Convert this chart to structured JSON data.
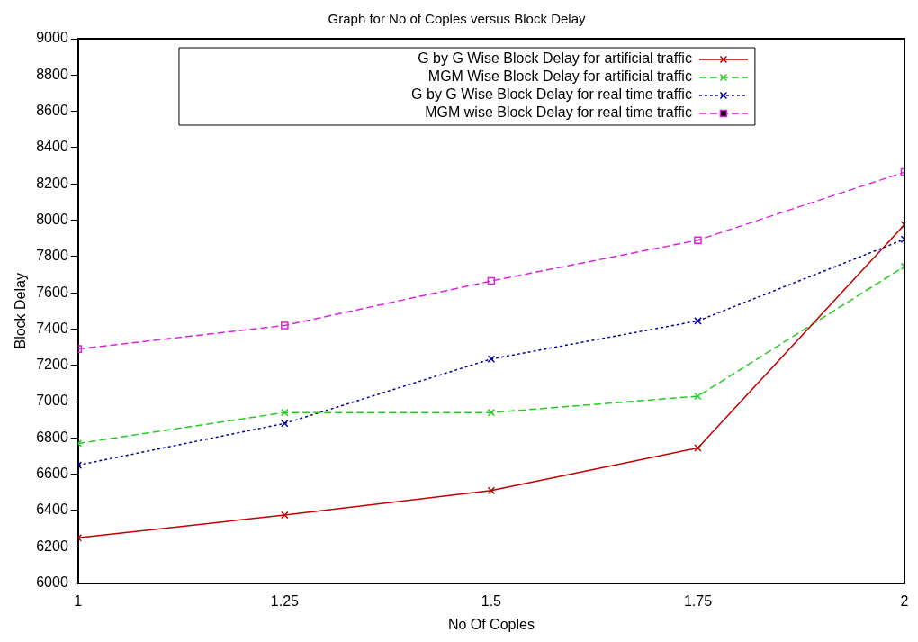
{
  "chart_data": {
    "type": "line",
    "title": "Graph for No of Coples versus Block Delay",
    "xlabel": "No Of Coples",
    "ylabel": "Block Delay",
    "x": [
      1,
      1.25,
      1.5,
      1.75,
      2
    ],
    "xlim": [
      1,
      2
    ],
    "xticks": [
      1,
      1.25,
      1.5,
      1.75,
      2
    ],
    "ylim": [
      6000,
      9000
    ],
    "yticks": [
      6000,
      6200,
      6400,
      6600,
      6800,
      7000,
      7200,
      7400,
      7600,
      7800,
      8000,
      8200,
      8400,
      8600,
      8800,
      9000
    ],
    "grid": false,
    "legend": "top right",
    "series": [
      {
        "name": "G by G Wise Block Delay for artificial traffic",
        "color": "#c00000",
        "marker": "cross",
        "line_style": "solid",
        "values": [
          6250,
          6375,
          6510,
          6745,
          7975
        ]
      },
      {
        "name": "MGM Wise Block Delay for artificial traffic",
        "color": "#22cc22",
        "marker": "cross",
        "line_style": "dashed",
        "values": [
          6770,
          6940,
          6940,
          7030,
          7745
        ]
      },
      {
        "name": "G by G Wise Block Delay for real time traffic",
        "color": "#0000a0",
        "marker": "cross",
        "line_style": "dotted",
        "values": [
          6650,
          6880,
          7235,
          7445,
          7895
        ]
      },
      {
        "name": "MGM wise Block Delay for real time traffic",
        "color": "#dd22dd",
        "marker": "square",
        "line_style": "dashed",
        "values": [
          7290,
          7420,
          7665,
          7890,
          8265
        ]
      }
    ]
  }
}
